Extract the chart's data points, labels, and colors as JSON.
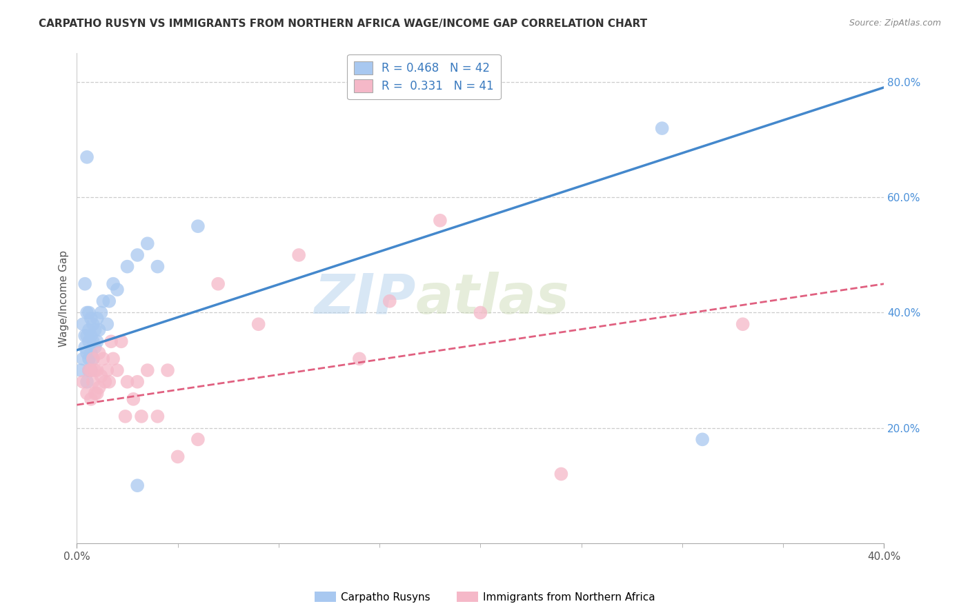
{
  "title": "CARPATHO RUSYN VS IMMIGRANTS FROM NORTHERN AFRICA WAGE/INCOME GAP CORRELATION CHART",
  "source": "Source: ZipAtlas.com",
  "ylabel": "Wage/Income Gap",
  "xlim": [
    0.0,
    0.4
  ],
  "ylim": [
    0.0,
    0.85
  ],
  "y_ticks_right": [
    0.2,
    0.4,
    0.6,
    0.8
  ],
  "y_tick_labels_right": [
    "20.0%",
    "40.0%",
    "60.0%",
    "80.0%"
  ],
  "color_blue": "#a8c8f0",
  "color_pink": "#f5b8c8",
  "line_color_blue": "#4488cc",
  "line_color_pink": "#e06080",
  "watermark_zip": "ZIP",
  "watermark_atlas": "atlas",
  "legend_label1": "Carpatho Rusyns",
  "legend_label2": "Immigrants from Northern Africa",
  "background_color": "#ffffff",
  "grid_color": "#cccccc",
  "blue_intercept": 0.335,
  "blue_slope": 1.14,
  "pink_intercept": 0.24,
  "pink_slope": 0.525,
  "scatter_blue_x": [
    0.002,
    0.003,
    0.003,
    0.004,
    0.004,
    0.004,
    0.005,
    0.005,
    0.005,
    0.005,
    0.006,
    0.006,
    0.006,
    0.006,
    0.006,
    0.007,
    0.007,
    0.007,
    0.007,
    0.008,
    0.008,
    0.008,
    0.009,
    0.009,
    0.01,
    0.01,
    0.011,
    0.012,
    0.013,
    0.015,
    0.016,
    0.018,
    0.02,
    0.025,
    0.03,
    0.035,
    0.04,
    0.005,
    0.06,
    0.29,
    0.31,
    0.03
  ],
  "scatter_blue_y": [
    0.3,
    0.32,
    0.38,
    0.34,
    0.36,
    0.45,
    0.28,
    0.33,
    0.36,
    0.4,
    0.3,
    0.32,
    0.35,
    0.37,
    0.4,
    0.3,
    0.33,
    0.36,
    0.39,
    0.32,
    0.35,
    0.38,
    0.34,
    0.37,
    0.35,
    0.39,
    0.37,
    0.4,
    0.42,
    0.38,
    0.42,
    0.45,
    0.44,
    0.48,
    0.5,
    0.52,
    0.48,
    0.67,
    0.55,
    0.72,
    0.18,
    0.1
  ],
  "scatter_pink_x": [
    0.003,
    0.005,
    0.006,
    0.007,
    0.007,
    0.008,
    0.008,
    0.009,
    0.009,
    0.01,
    0.01,
    0.011,
    0.011,
    0.012,
    0.013,
    0.014,
    0.015,
    0.016,
    0.017,
    0.018,
    0.02,
    0.022,
    0.024,
    0.025,
    0.028,
    0.03,
    0.032,
    0.035,
    0.04,
    0.045,
    0.05,
    0.06,
    0.07,
    0.09,
    0.11,
    0.14,
    0.155,
    0.18,
    0.2,
    0.24,
    0.33
  ],
  "scatter_pink_y": [
    0.28,
    0.26,
    0.3,
    0.25,
    0.3,
    0.28,
    0.32,
    0.26,
    0.3,
    0.26,
    0.3,
    0.27,
    0.33,
    0.29,
    0.32,
    0.28,
    0.3,
    0.28,
    0.35,
    0.32,
    0.3,
    0.35,
    0.22,
    0.28,
    0.25,
    0.28,
    0.22,
    0.3,
    0.22,
    0.3,
    0.15,
    0.18,
    0.45,
    0.38,
    0.5,
    0.32,
    0.42,
    0.56,
    0.4,
    0.12,
    0.38
  ]
}
